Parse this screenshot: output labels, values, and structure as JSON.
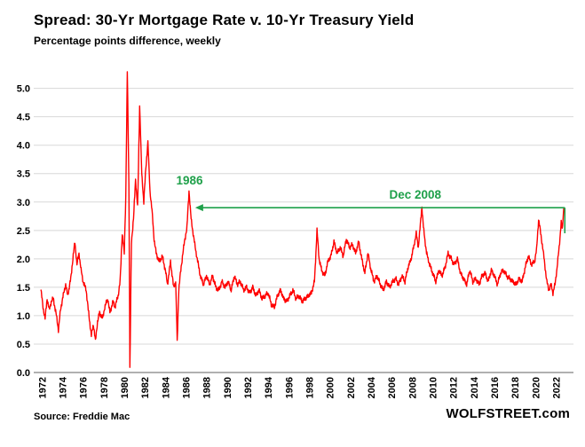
{
  "chart_data": {
    "type": "line",
    "title": "Spread: 30-Yr Mortgage Rate v. 10-Yr Treasury Yield",
    "subtitle": "Percentage points difference, weekly",
    "source": "Source: Freddie Mac",
    "watermark": "WOLFSTREET.com",
    "line_color": "#FF0000",
    "annotation_color": "#1FA04A",
    "grid_color": "#D8D8D8",
    "axis_line_color": "#808080",
    "grid": "horizontal",
    "legend": "none",
    "xlim": [
      1971.8,
      2023.0
    ],
    "ylim": [
      0.0,
      5.4
    ],
    "ylabel": "",
    "xlabel": "",
    "y_ticks": [
      "0.0",
      "0.5",
      "1.0",
      "1.5",
      "2.0",
      "2.5",
      "3.0",
      "3.5",
      "4.0",
      "4.5",
      "5.0"
    ],
    "y_tick_values": [
      0.0,
      0.5,
      1.0,
      1.5,
      2.0,
      2.5,
      3.0,
      3.5,
      4.0,
      4.5,
      5.0
    ],
    "x_ticks": [
      "1972",
      "1974",
      "1976",
      "1978",
      "1980",
      "1982",
      "1984",
      "1986",
      "1988",
      "1990",
      "1992",
      "1994",
      "1996",
      "1998",
      "2000",
      "2002",
      "2004",
      "2006",
      "2008",
      "2010",
      "2012",
      "2014",
      "2016",
      "2018",
      "2020",
      "2022"
    ],
    "x_tick_values": [
      1972,
      1974,
      1976,
      1978,
      1980,
      1982,
      1984,
      1986,
      1988,
      1990,
      1992,
      1994,
      1996,
      1998,
      2000,
      2002,
      2004,
      2006,
      2008,
      2010,
      2012,
      2014,
      2016,
      2018,
      2020,
      2022
    ],
    "annotations": [
      {
        "label": "1986",
        "x": 1986.35,
        "y": 3.2,
        "label_dy": -7
      },
      {
        "label": "Dec 2008",
        "x": 2008.3,
        "y": 2.9,
        "label_dy": -10
      }
    ],
    "arrow": {
      "y": 2.9,
      "from_x": 2022.85,
      "to_x": 1986.9,
      "right_tail_y": 2.45
    },
    "series": [
      {
        "name": "30-yr mortgage rate minus 10-yr Treasury yield spread",
        "points": [
          [
            1971.9,
            1.45
          ],
          [
            1972.1,
            1.15
          ],
          [
            1972.3,
            0.95
          ],
          [
            1972.5,
            1.3
          ],
          [
            1972.7,
            1.1
          ],
          [
            1972.9,
            1.25
          ],
          [
            1973.1,
            1.3
          ],
          [
            1973.4,
            1.0
          ],
          [
            1973.6,
            0.75
          ],
          [
            1973.8,
            1.1
          ],
          [
            1974.0,
            1.3
          ],
          [
            1974.3,
            1.55
          ],
          [
            1974.5,
            1.35
          ],
          [
            1974.8,
            1.65
          ],
          [
            1975.0,
            2.0
          ],
          [
            1975.2,
            2.3
          ],
          [
            1975.4,
            1.9
          ],
          [
            1975.6,
            2.1
          ],
          [
            1975.8,
            1.8
          ],
          [
            1976.0,
            1.6
          ],
          [
            1976.3,
            1.45
          ],
          [
            1976.5,
            1.1
          ],
          [
            1976.8,
            0.65
          ],
          [
            1977.0,
            0.85
          ],
          [
            1977.2,
            0.55
          ],
          [
            1977.4,
            0.9
          ],
          [
            1977.6,
            1.05
          ],
          [
            1977.9,
            0.95
          ],
          [
            1978.1,
            1.15
          ],
          [
            1978.4,
            1.3
          ],
          [
            1978.6,
            1.05
          ],
          [
            1978.9,
            1.25
          ],
          [
            1979.1,
            1.15
          ],
          [
            1979.4,
            1.35
          ],
          [
            1979.6,
            1.6
          ],
          [
            1979.8,
            2.45
          ],
          [
            1980.0,
            2.1
          ],
          [
            1980.15,
            3.1
          ],
          [
            1980.3,
            5.3
          ],
          [
            1980.45,
            3.3
          ],
          [
            1980.55,
            0.05
          ],
          [
            1980.7,
            2.3
          ],
          [
            1980.9,
            2.7
          ],
          [
            1981.1,
            3.4
          ],
          [
            1981.3,
            2.9
          ],
          [
            1981.5,
            4.7
          ],
          [
            1981.7,
            3.5
          ],
          [
            1981.9,
            3.0
          ],
          [
            1982.1,
            3.6
          ],
          [
            1982.3,
            4.05
          ],
          [
            1982.5,
            3.2
          ],
          [
            1982.7,
            2.85
          ],
          [
            1982.9,
            2.35
          ],
          [
            1983.1,
            2.1
          ],
          [
            1983.4,
            1.95
          ],
          [
            1983.7,
            2.05
          ],
          [
            1984.0,
            1.8
          ],
          [
            1984.2,
            1.55
          ],
          [
            1984.5,
            1.95
          ],
          [
            1984.8,
            1.5
          ],
          [
            1985.0,
            1.6
          ],
          [
            1985.15,
            0.55
          ],
          [
            1985.3,
            1.45
          ],
          [
            1985.5,
            1.8
          ],
          [
            1985.7,
            2.1
          ],
          [
            1985.9,
            2.35
          ],
          [
            1986.1,
            2.55
          ],
          [
            1986.3,
            3.2
          ],
          [
            1986.5,
            2.7
          ],
          [
            1986.7,
            2.45
          ],
          [
            1986.9,
            2.2
          ],
          [
            1987.1,
            2.0
          ],
          [
            1987.4,
            1.7
          ],
          [
            1987.7,
            1.55
          ],
          [
            1988.0,
            1.7
          ],
          [
            1988.3,
            1.55
          ],
          [
            1988.6,
            1.7
          ],
          [
            1988.9,
            1.5
          ],
          [
            1989.2,
            1.45
          ],
          [
            1989.5,
            1.6
          ],
          [
            1989.8,
            1.5
          ],
          [
            1990.1,
            1.6
          ],
          [
            1990.4,
            1.45
          ],
          [
            1990.7,
            1.7
          ],
          [
            1991.0,
            1.55
          ],
          [
            1991.3,
            1.6
          ],
          [
            1991.6,
            1.45
          ],
          [
            1991.9,
            1.5
          ],
          [
            1992.2,
            1.4
          ],
          [
            1992.5,
            1.5
          ],
          [
            1992.8,
            1.35
          ],
          [
            1993.1,
            1.45
          ],
          [
            1993.4,
            1.3
          ],
          [
            1993.7,
            1.35
          ],
          [
            1994.0,
            1.4
          ],
          [
            1994.3,
            1.2
          ],
          [
            1994.6,
            1.15
          ],
          [
            1994.9,
            1.35
          ],
          [
            1995.2,
            1.45
          ],
          [
            1995.5,
            1.3
          ],
          [
            1995.8,
            1.25
          ],
          [
            1996.1,
            1.35
          ],
          [
            1996.4,
            1.45
          ],
          [
            1996.7,
            1.3
          ],
          [
            1997.0,
            1.35
          ],
          [
            1997.3,
            1.25
          ],
          [
            1997.6,
            1.3
          ],
          [
            1997.9,
            1.35
          ],
          [
            1998.2,
            1.4
          ],
          [
            1998.5,
            1.6
          ],
          [
            1998.75,
            2.5
          ],
          [
            1998.95,
            2.0
          ],
          [
            1999.2,
            1.8
          ],
          [
            1999.5,
            1.7
          ],
          [
            1999.8,
            1.95
          ],
          [
            2000.1,
            2.05
          ],
          [
            2000.4,
            2.3
          ],
          [
            2000.7,
            2.1
          ],
          [
            2001.0,
            2.2
          ],
          [
            2001.3,
            2.05
          ],
          [
            2001.6,
            2.35
          ],
          [
            2001.9,
            2.2
          ],
          [
            2002.2,
            2.25
          ],
          [
            2002.5,
            2.1
          ],
          [
            2002.8,
            2.3
          ],
          [
            2003.1,
            2.0
          ],
          [
            2003.4,
            1.75
          ],
          [
            2003.7,
            2.1
          ],
          [
            2004.0,
            1.8
          ],
          [
            2004.3,
            1.6
          ],
          [
            2004.6,
            1.7
          ],
          [
            2004.9,
            1.55
          ],
          [
            2005.2,
            1.45
          ],
          [
            2005.5,
            1.6
          ],
          [
            2005.8,
            1.5
          ],
          [
            2006.1,
            1.6
          ],
          [
            2006.4,
            1.65
          ],
          [
            2006.7,
            1.55
          ],
          [
            2007.0,
            1.7
          ],
          [
            2007.3,
            1.6
          ],
          [
            2007.6,
            1.85
          ],
          [
            2007.9,
            2.0
          ],
          [
            2008.2,
            2.25
          ],
          [
            2008.4,
            2.45
          ],
          [
            2008.6,
            2.2
          ],
          [
            2008.8,
            2.6
          ],
          [
            2008.95,
            2.92
          ],
          [
            2009.1,
            2.55
          ],
          [
            2009.4,
            2.1
          ],
          [
            2009.7,
            1.9
          ],
          [
            2010.0,
            1.75
          ],
          [
            2010.3,
            1.6
          ],
          [
            2010.6,
            1.8
          ],
          [
            2010.9,
            1.7
          ],
          [
            2011.2,
            1.85
          ],
          [
            2011.5,
            2.1
          ],
          [
            2011.8,
            2.0
          ],
          [
            2012.1,
            1.9
          ],
          [
            2012.4,
            2.0
          ],
          [
            2012.7,
            1.75
          ],
          [
            2013.0,
            1.65
          ],
          [
            2013.3,
            1.55
          ],
          [
            2013.6,
            1.8
          ],
          [
            2013.9,
            1.6
          ],
          [
            2014.2,
            1.65
          ],
          [
            2014.5,
            1.55
          ],
          [
            2014.8,
            1.7
          ],
          [
            2015.1,
            1.75
          ],
          [
            2015.4,
            1.6
          ],
          [
            2015.7,
            1.8
          ],
          [
            2016.0,
            1.7
          ],
          [
            2016.3,
            1.55
          ],
          [
            2016.6,
            1.75
          ],
          [
            2016.9,
            1.8
          ],
          [
            2017.2,
            1.7
          ],
          [
            2017.5,
            1.65
          ],
          [
            2017.8,
            1.6
          ],
          [
            2018.1,
            1.55
          ],
          [
            2018.4,
            1.65
          ],
          [
            2018.7,
            1.6
          ],
          [
            2019.0,
            1.85
          ],
          [
            2019.3,
            2.05
          ],
          [
            2019.6,
            1.9
          ],
          [
            2019.9,
            1.95
          ],
          [
            2020.1,
            2.15
          ],
          [
            2020.3,
            2.7
          ],
          [
            2020.5,
            2.45
          ],
          [
            2020.7,
            2.2
          ],
          [
            2020.9,
            1.9
          ],
          [
            2021.1,
            1.6
          ],
          [
            2021.3,
            1.45
          ],
          [
            2021.5,
            1.55
          ],
          [
            2021.7,
            1.4
          ],
          [
            2021.9,
            1.55
          ],
          [
            2022.1,
            1.85
          ],
          [
            2022.3,
            2.2
          ],
          [
            2022.5,
            2.65
          ],
          [
            2022.6,
            2.5
          ],
          [
            2022.75,
            2.9
          ]
        ]
      }
    ]
  }
}
